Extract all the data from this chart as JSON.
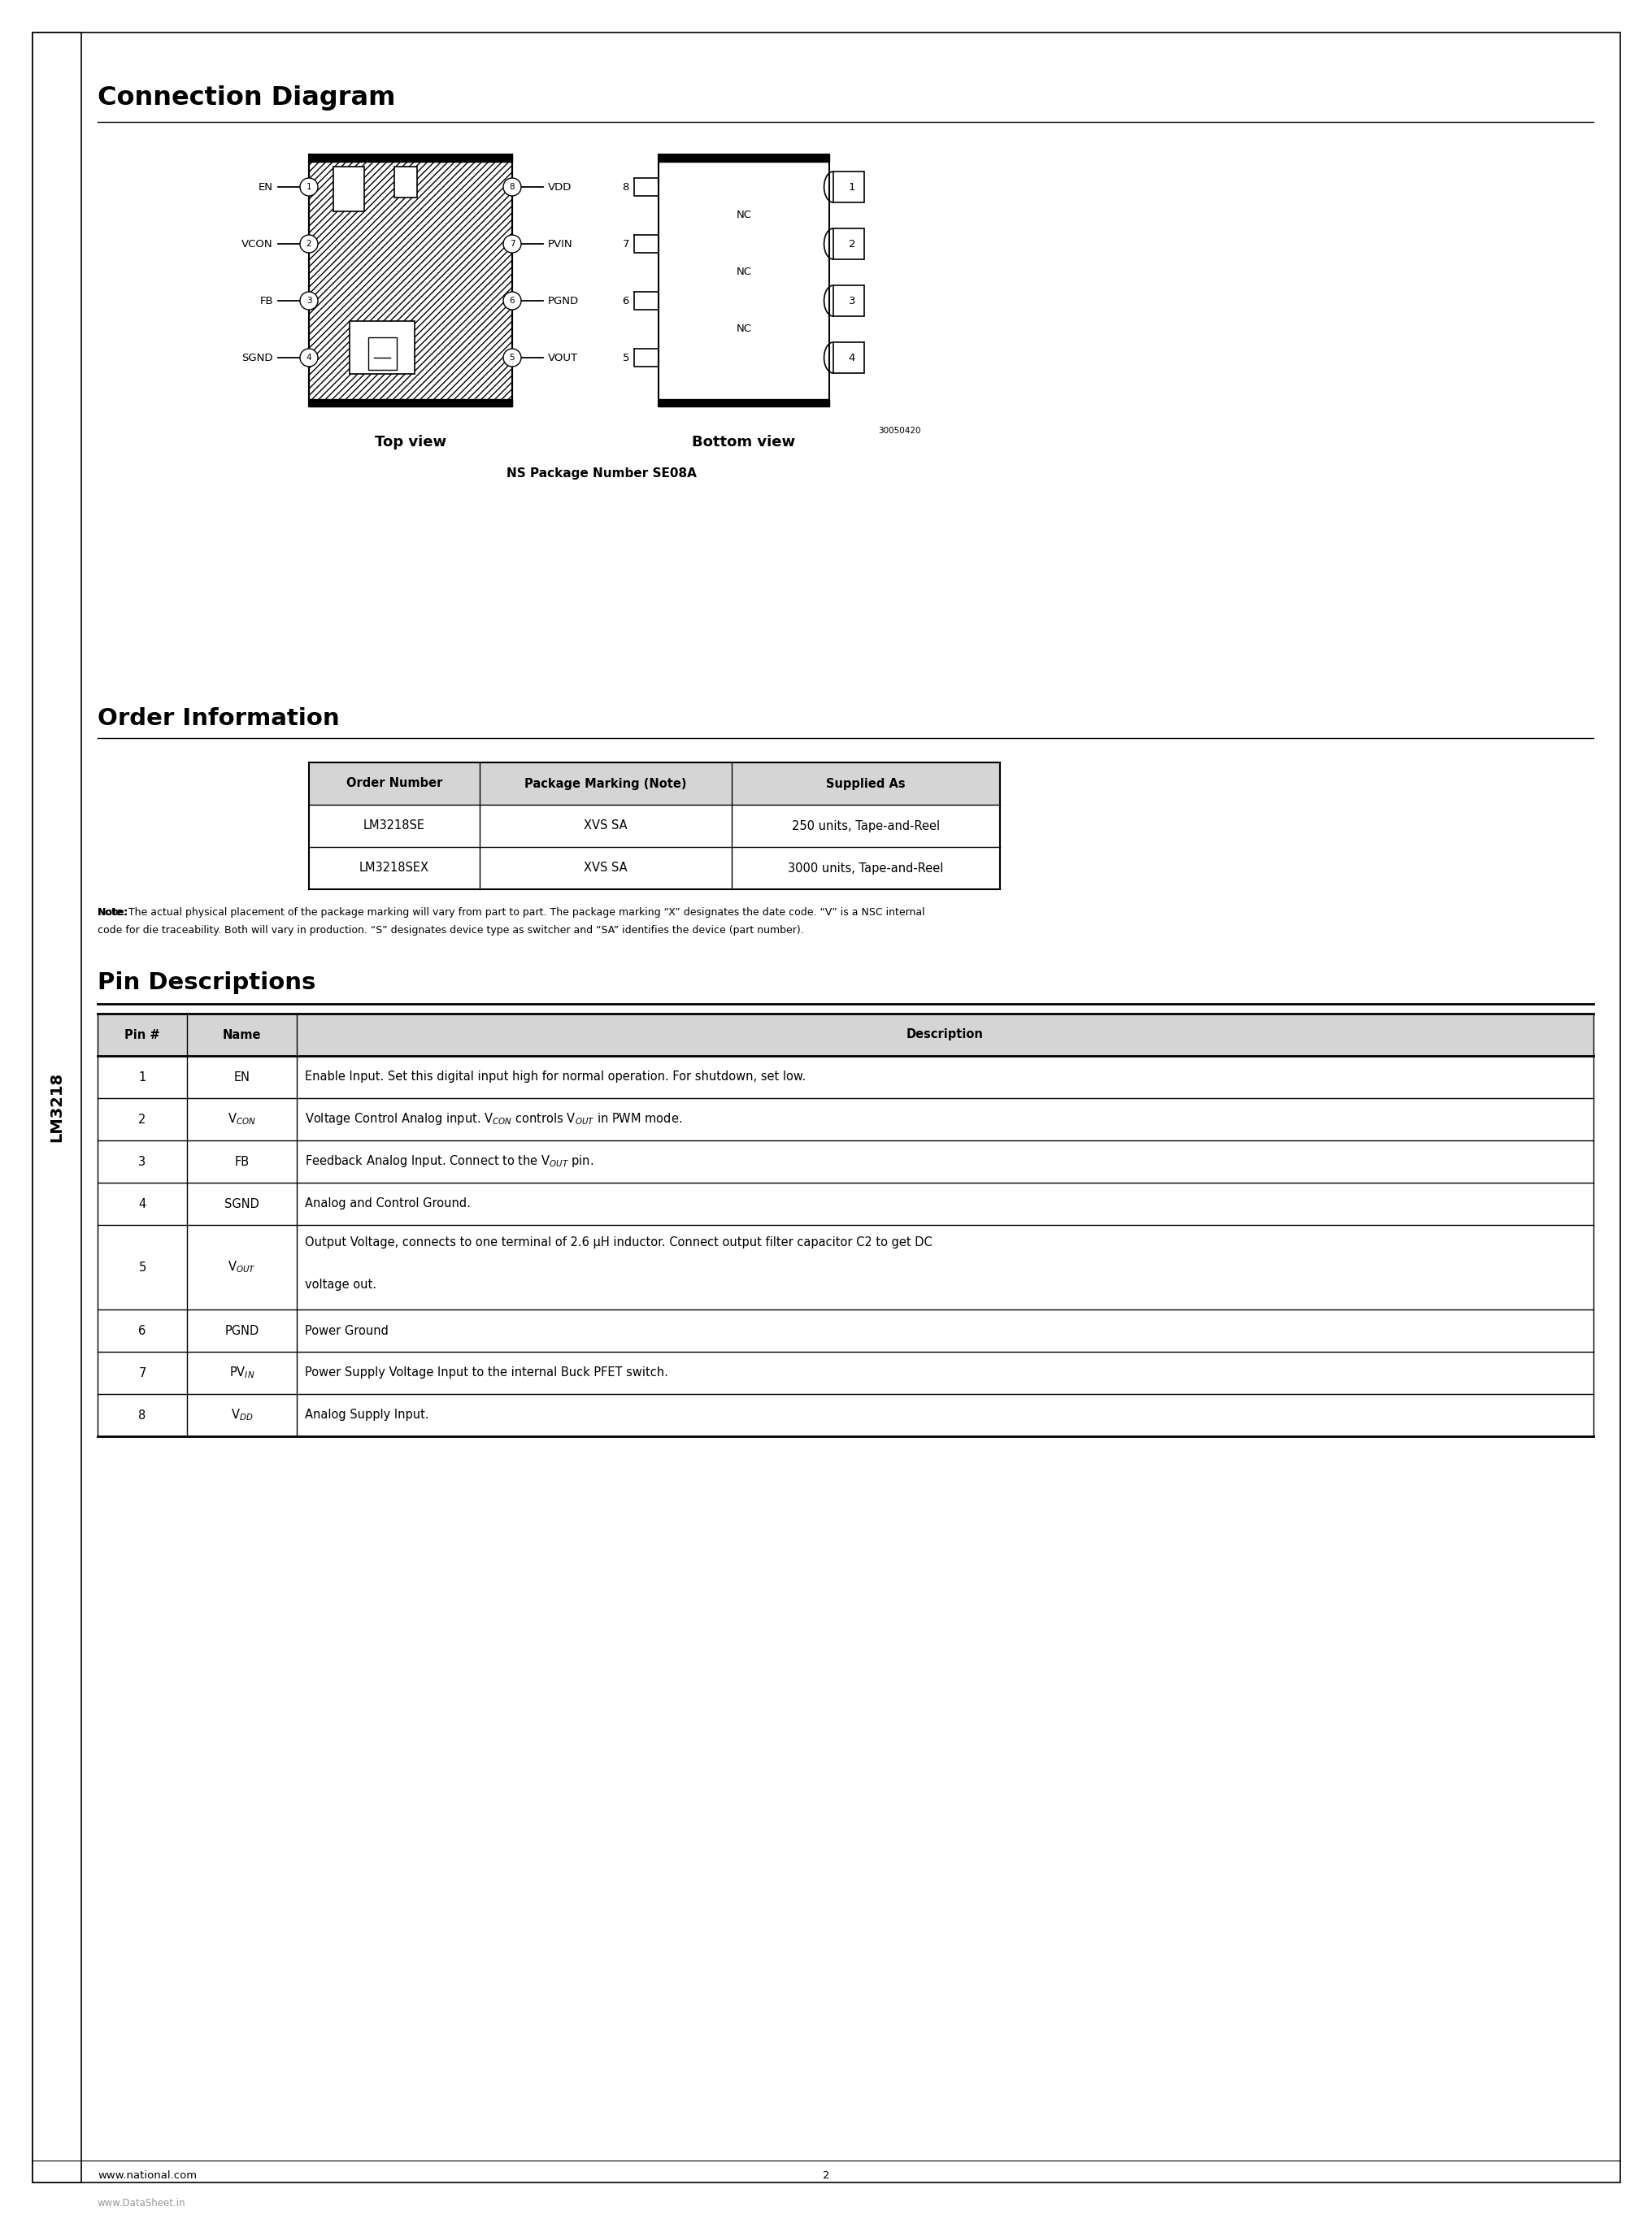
{
  "page_title": "Connection Diagram",
  "section2_title": "Order Information",
  "section3_title": "Pin Descriptions",
  "lm3218_label": "LM3218",
  "order_table_headers": [
    "Order Number",
    "Package Marking (Note)",
    "Supplied As"
  ],
  "order_table_rows": [
    [
      "LM3218SE",
      "XVS SA",
      "250 units, Tape-and-Reel"
    ],
    [
      "LM3218SEX",
      "XVS SA",
      "3000 units, Tape-and-Reel"
    ]
  ],
  "note_bold": "Note:",
  "note_text": " The actual physical placement of the package marking will vary from part to part. The package marking “X” designates the date code. “V” is a NSC internal code for die traceability. Both will vary in production. “S” designates device type as switcher and “SA” identifies the device (part number).",
  "pin_table_headers": [
    "Pin #",
    "Name",
    "Description"
  ],
  "pin_rows": [
    [
      "1",
      "EN",
      "EN",
      "Enable Input. Set this digital input high for normal operation. For shutdown, set low."
    ],
    [
      "2",
      "V_CON",
      "V$_{CON}$",
      "Voltage Control Analog input. V$_{CON}$ controls V$_{OUT}$ in PWM mode."
    ],
    [
      "3",
      "FB",
      "FB",
      "Feedback Analog Input. Connect to the V$_{OUT}$ pin."
    ],
    [
      "4",
      "SGND",
      "SGND",
      "Analog and Control Ground."
    ],
    [
      "5",
      "V_OUT",
      "V$_{OUT}$",
      "Output Voltage, connects to one terminal of 2.6 μH inductor. Connect output filter capacitor C2 to get DC\nvoltage out."
    ],
    [
      "6",
      "PGND",
      "PGND",
      "Power Ground"
    ],
    [
      "7",
      "PV_IN",
      "PV$_{IN}$",
      "Power Supply Voltage Input to the internal Buck PFET switch."
    ],
    [
      "8",
      "V_DD",
      "V$_{DD}$",
      "Analog Supply Input."
    ]
  ],
  "top_view_label": "Top view",
  "bottom_view_label": "Bottom view",
  "package_label": "NS Package Number SE08A",
  "ref_number": "30050420",
  "footer_left": "www.national.com",
  "footer_center": "2",
  "footer_watermark": "www.DataSheet.in",
  "bg_color": "#ffffff"
}
